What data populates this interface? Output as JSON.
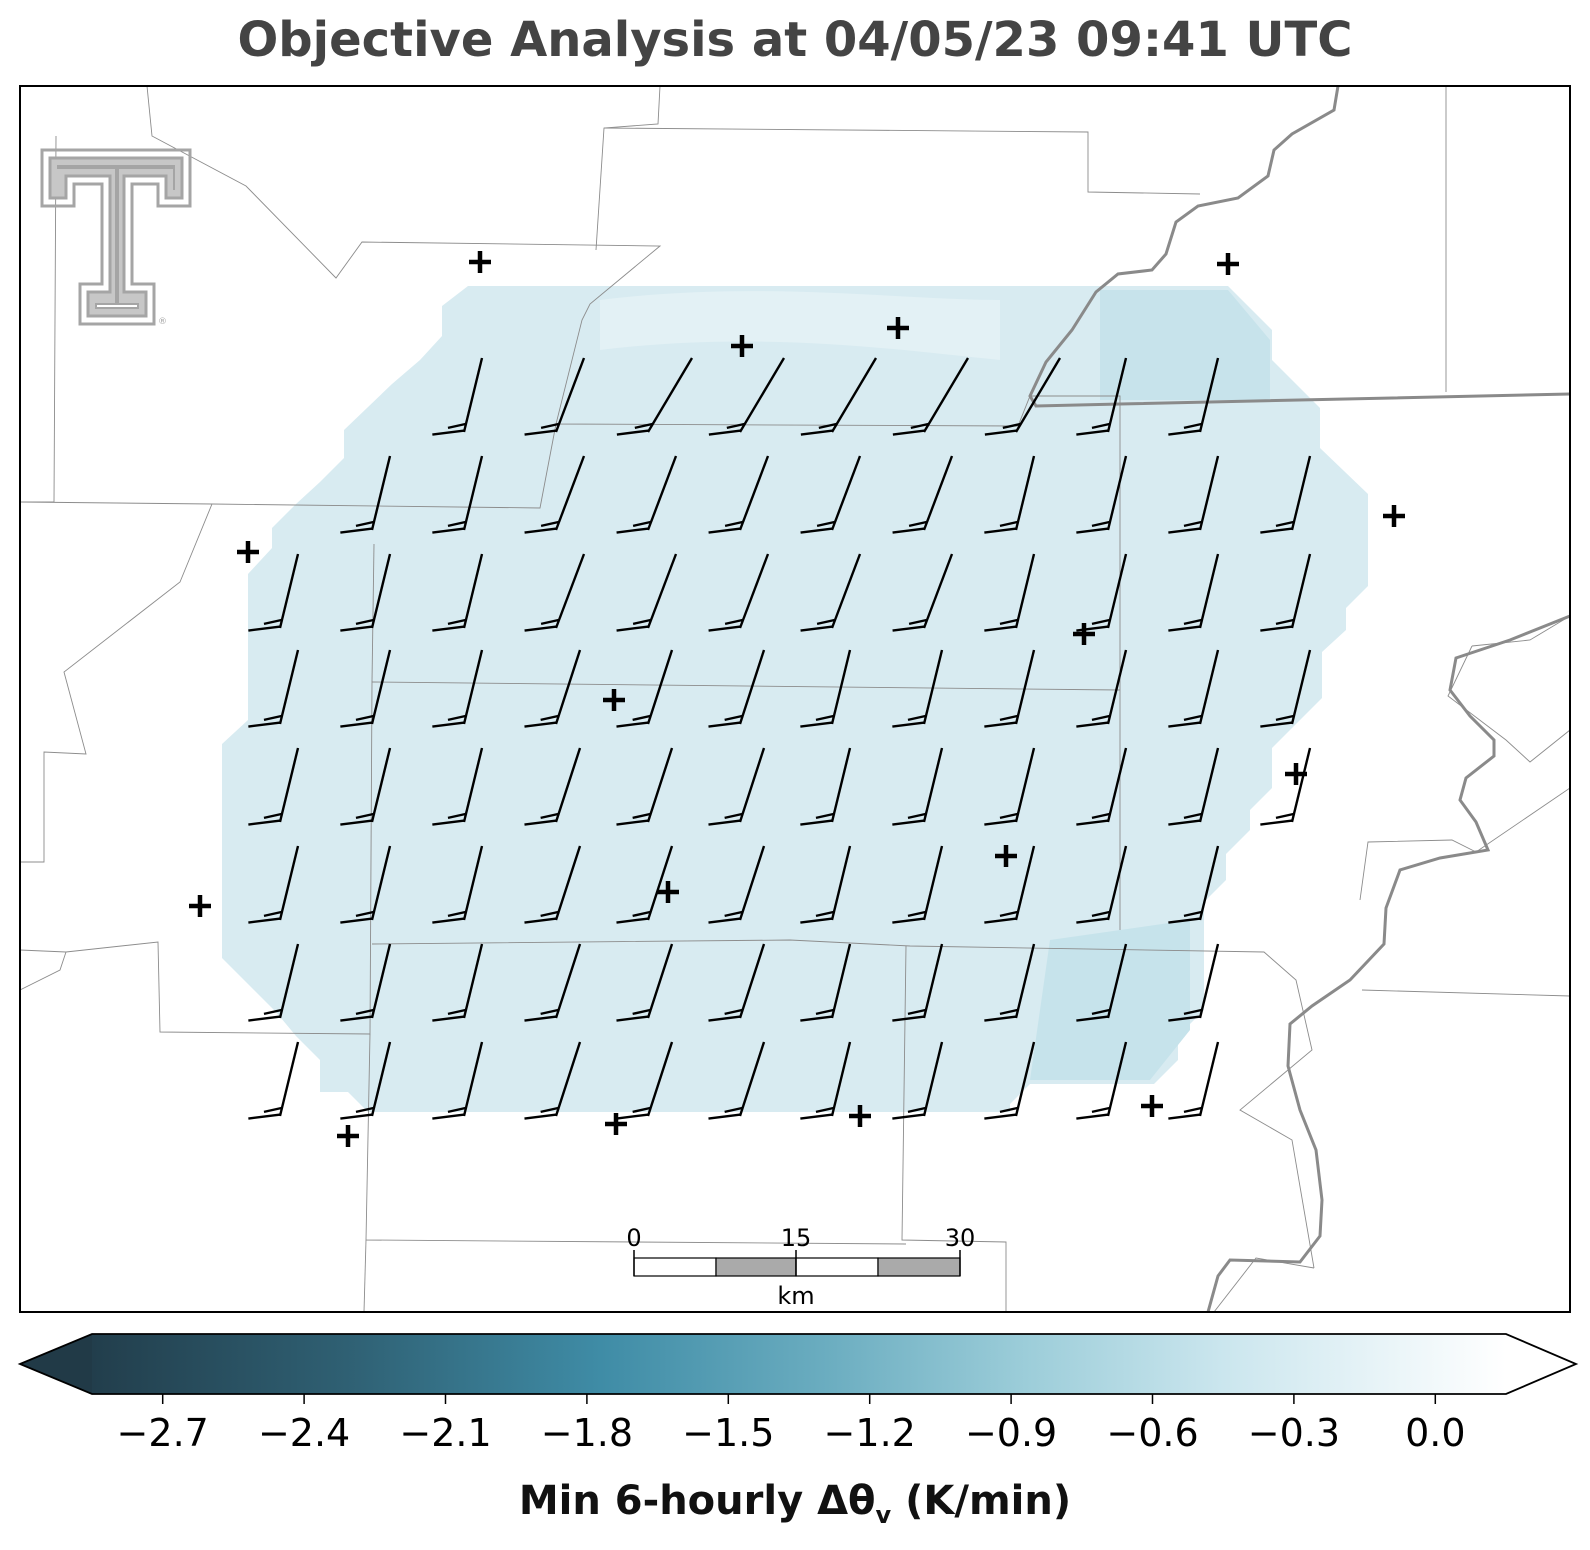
{
  "title": "Objective Analysis at 04/05/23 09:41 UTC",
  "colorbar": {
    "label_main": "Min 6-hourly Δθ",
    "label_sub": "v",
    "label_units": " (K/min)",
    "ticks": [
      "−2.7",
      "−2.4",
      "−2.1",
      "−1.8",
      "−1.5",
      "−1.2",
      "−0.9",
      "−0.6",
      "−0.3",
      "0.0"
    ],
    "tick_values": [
      -2.7,
      -2.4,
      -2.1,
      -1.8,
      -1.5,
      -1.2,
      -0.9,
      -0.6,
      -0.3,
      0.0
    ],
    "range": [
      -2.85,
      0.15
    ],
    "extend": "both",
    "colors": [
      "#213f4e",
      "#2f5b6d",
      "#3b7d95",
      "#4894ad",
      "#6aaec2",
      "#94c8d6",
      "#bde0ea",
      "#ddeff4",
      "#ffffff"
    ]
  },
  "scalebar": {
    "ticks": [
      "0",
      "15",
      "30"
    ],
    "unit": "km"
  },
  "analysis_field": {
    "fill": "#d6ebf1",
    "fill_light": "#e6f3f7",
    "fill_dark": "#c4e2eb"
  },
  "logo": {
    "name": "double-T-logo",
    "color": "#a5a5a5"
  },
  "stations_count_note": ""
}
